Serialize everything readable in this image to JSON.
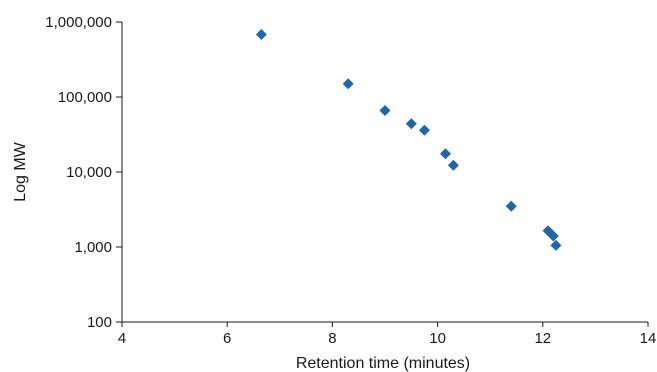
{
  "chart_data": {
    "type": "scatter",
    "xlabel": "Retention time (minutes)",
    "ylabel": "Log MW",
    "xlim": [
      4,
      14
    ],
    "ylim": [
      100,
      1000000
    ],
    "y_scale": "log",
    "x_ticks": [
      4,
      6,
      8,
      10,
      12,
      14
    ],
    "x_tick_labels": [
      "4",
      "6",
      "8",
      "10",
      "12",
      "14"
    ],
    "y_ticks": [
      100,
      1000,
      10000,
      100000,
      1000000
    ],
    "y_tick_labels": [
      "100",
      "1,000",
      "10,000",
      "100,000",
      "1,000,000"
    ],
    "grid": false,
    "legend": "none",
    "marker": "diamond",
    "marker_color": "#1f67ad",
    "series": [
      {
        "points": [
          {
            "x": 6.65,
            "y": 680000
          },
          {
            "x": 8.3,
            "y": 150000
          },
          {
            "x": 9.0,
            "y": 66000
          },
          {
            "x": 9.5,
            "y": 44000
          },
          {
            "x": 9.75,
            "y": 36000
          },
          {
            "x": 10.15,
            "y": 17500
          },
          {
            "x": 10.3,
            "y": 12300
          },
          {
            "x": 11.4,
            "y": 3500
          },
          {
            "x": 12.1,
            "y": 1650
          },
          {
            "x": 12.2,
            "y": 1400
          },
          {
            "x": 12.25,
            "y": 1050
          }
        ]
      }
    ]
  }
}
